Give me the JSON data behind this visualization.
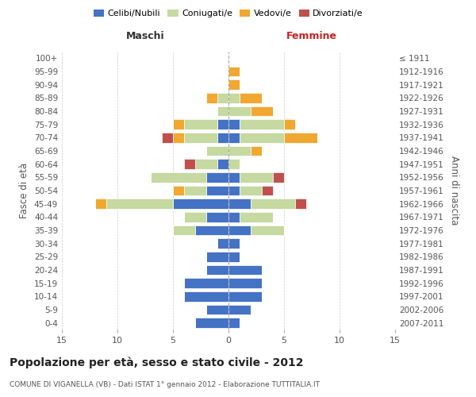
{
  "age_groups": [
    "0-4",
    "5-9",
    "10-14",
    "15-19",
    "20-24",
    "25-29",
    "30-34",
    "35-39",
    "40-44",
    "45-49",
    "50-54",
    "55-59",
    "60-64",
    "65-69",
    "70-74",
    "75-79",
    "80-84",
    "85-89",
    "90-94",
    "95-99",
    "100+"
  ],
  "birth_years": [
    "2007-2011",
    "2002-2006",
    "1997-2001",
    "1992-1996",
    "1987-1991",
    "1982-1986",
    "1977-1981",
    "1972-1976",
    "1967-1971",
    "1962-1966",
    "1957-1961",
    "1952-1956",
    "1947-1951",
    "1942-1946",
    "1937-1941",
    "1932-1936",
    "1927-1931",
    "1922-1926",
    "1917-1921",
    "1912-1916",
    "≤ 1911"
  ],
  "male": {
    "celibi": [
      3,
      2,
      4,
      4,
      2,
      2,
      1,
      3,
      2,
      5,
      2,
      2,
      1,
      0,
      1,
      1,
      0,
      0,
      0,
      0,
      0
    ],
    "coniugati": [
      0,
      0,
      0,
      0,
      0,
      0,
      0,
      2,
      2,
      6,
      2,
      5,
      2,
      2,
      3,
      3,
      1,
      1,
      0,
      0,
      0
    ],
    "vedovi": [
      0,
      0,
      0,
      0,
      0,
      0,
      0,
      0,
      0,
      1,
      1,
      0,
      0,
      0,
      1,
      1,
      0,
      1,
      0,
      0,
      0
    ],
    "divorziati": [
      0,
      0,
      0,
      0,
      0,
      0,
      0,
      0,
      0,
      0,
      0,
      0,
      1,
      0,
      1,
      0,
      0,
      0,
      0,
      0,
      0
    ]
  },
  "female": {
    "nubili": [
      1,
      2,
      3,
      3,
      3,
      1,
      1,
      2,
      1,
      2,
      1,
      1,
      0,
      0,
      1,
      1,
      0,
      0,
      0,
      0,
      0
    ],
    "coniugate": [
      0,
      0,
      0,
      0,
      0,
      0,
      0,
      3,
      3,
      4,
      2,
      3,
      1,
      2,
      4,
      4,
      2,
      1,
      0,
      0,
      0
    ],
    "vedove": [
      0,
      0,
      0,
      0,
      0,
      0,
      0,
      0,
      0,
      0,
      0,
      0,
      0,
      1,
      3,
      1,
      2,
      2,
      1,
      1,
      0
    ],
    "divorziate": [
      0,
      0,
      0,
      0,
      0,
      0,
      0,
      0,
      0,
      1,
      1,
      1,
      0,
      0,
      0,
      0,
      0,
      0,
      0,
      0,
      0
    ]
  },
  "colors": {
    "celibi": "#4472c4",
    "coniugati": "#c5d9a0",
    "vedovi": "#f0a830",
    "divorziati": "#c0504d"
  },
  "title": "Popolazione per età, sesso e stato civile - 2012",
  "subtitle": "COMUNE DI VIGANELLA (VB) - Dati ISTAT 1° gennaio 2012 - Elaborazione TUTTITALIA.IT",
  "xlabel_left": "Maschi",
  "xlabel_right": "Femmine",
  "ylabel_left": "Fasce di età",
  "ylabel_right": "Anni di nascita",
  "xlim": 15,
  "background_color": "#ffffff",
  "grid_color": "#cccccc"
}
